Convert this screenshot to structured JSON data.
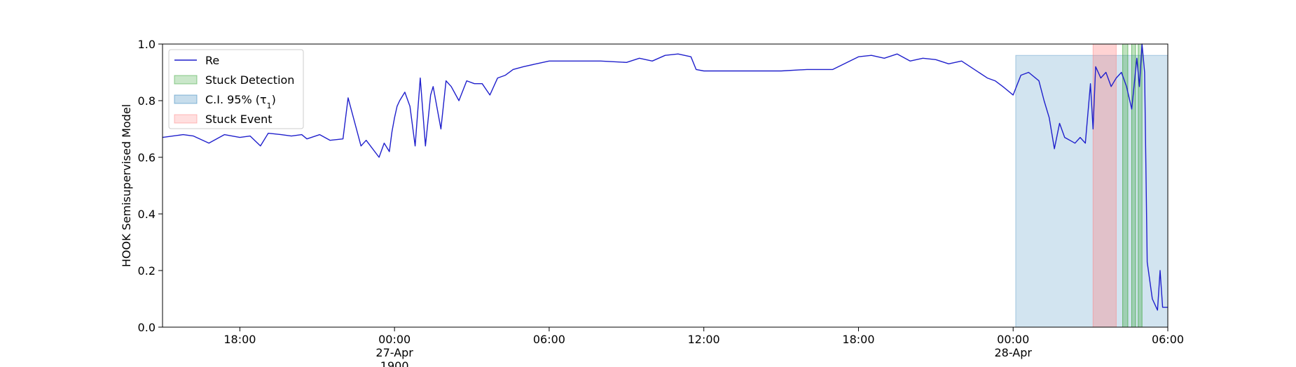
{
  "chart_data": {
    "type": "line",
    "title": "",
    "xlabel": "",
    "ylabel": "HOOK Semisupervised Model",
    "ylim": [
      0,
      1
    ],
    "xlim": [
      -9,
      30
    ],
    "x_unit": "hours relative to 27-Apr 00:00",
    "yticks": [
      {
        "value": 0.0,
        "label": "0.0"
      },
      {
        "value": 0.2,
        "label": "0.2"
      },
      {
        "value": 0.4,
        "label": "0.4"
      },
      {
        "value": 0.6,
        "label": "0.6"
      },
      {
        "value": 0.8,
        "label": "0.8"
      },
      {
        "value": 1.0,
        "label": "1.0"
      }
    ],
    "xticks": [
      {
        "value": -6,
        "label": "18:00",
        "sub1": "",
        "sub2": ""
      },
      {
        "value": 0,
        "label": "00:00",
        "sub1": "27-Apr",
        "sub2": "1900"
      },
      {
        "value": 6,
        "label": "06:00",
        "sub1": "",
        "sub2": ""
      },
      {
        "value": 12,
        "label": "12:00",
        "sub1": "",
        "sub2": ""
      },
      {
        "value": 18,
        "label": "18:00",
        "sub1": "",
        "sub2": ""
      },
      {
        "value": 24,
        "label": "00:00",
        "sub1": "28-Apr",
        "sub2": ""
      },
      {
        "value": 30,
        "label": "06:00",
        "sub1": "",
        "sub2": ""
      }
    ],
    "legend": {
      "placement": "upper-left",
      "entries": [
        {
          "label": "Re",
          "kind": "line",
          "color": "#1f1fcc"
        },
        {
          "label": "Stuck Detection",
          "kind": "patch",
          "color": "#2ca02c"
        },
        {
          "label": "C.I. 95% (τ",
          "sub": "1",
          "suffix": ")",
          "kind": "patch",
          "color": "#1f77b4"
        },
        {
          "label": "Stuck Event",
          "kind": "patch",
          "color": "#ff7f7f"
        }
      ]
    },
    "regions": {
      "ci": {
        "x0": 24.1,
        "x1": 30,
        "y0": 0,
        "y1": 0.96,
        "color": "#1f77b4",
        "opacity": 0.2
      },
      "stuck_event": {
        "x0": 27.1,
        "x1": 28.0,
        "y0": 0,
        "y1": 1,
        "color": "#ff8080",
        "opacity": 0.35
      },
      "stuck_detection": [
        {
          "x0": 28.25,
          "x1": 28.45
        },
        {
          "x0": 28.6,
          "x1": 28.75
        },
        {
          "x0": 28.85,
          "x1": 29.0
        }
      ],
      "detection_color": "#2ca02c",
      "detection_opacity": 0.3
    },
    "series": [
      {
        "name": "Re",
        "color": "#1f1fcc",
        "x": [
          -9.0,
          -8.6,
          -8.2,
          -7.8,
          -7.2,
          -6.6,
          -6.0,
          -5.6,
          -5.2,
          -4.9,
          -4.4,
          -4.0,
          -3.6,
          -3.4,
          -2.9,
          -2.5,
          -2.0,
          -1.8,
          -1.3,
          -1.1,
          -0.6,
          -0.4,
          -0.2,
          -0.1,
          0.0,
          0.1,
          0.2,
          0.4,
          0.6,
          0.8,
          1.0,
          1.2,
          1.4,
          1.5,
          1.6,
          1.8,
          2.0,
          2.2,
          2.5,
          2.8,
          3.1,
          3.4,
          3.7,
          4.0,
          4.3,
          4.6,
          5.0,
          5.5,
          6.0,
          6.5,
          7.0,
          8.0,
          9.0,
          9.5,
          10.0,
          10.5,
          11.0,
          11.5,
          11.7,
          12.0,
          13.0,
          14.0,
          15.0,
          16.0,
          17.0,
          18.0,
          18.5,
          19.0,
          19.5,
          20.0,
          20.5,
          21.0,
          21.5,
          22.0,
          22.5,
          23.0,
          23.3,
          23.6,
          24.0,
          24.3,
          24.6,
          25.0,
          25.2,
          25.4,
          25.6,
          25.8,
          26.0,
          26.2,
          26.4,
          26.6,
          26.8,
          27.0,
          27.1,
          27.2,
          27.4,
          27.6,
          27.8,
          28.0,
          28.2,
          28.4,
          28.6,
          28.8,
          28.9,
          29.0,
          29.1,
          29.2,
          29.4,
          29.6,
          29.7,
          29.8,
          30.0
        ],
        "y": [
          0.67,
          0.675,
          0.68,
          0.675,
          0.65,
          0.68,
          0.67,
          0.675,
          0.64,
          0.685,
          0.68,
          0.675,
          0.68,
          0.665,
          0.68,
          0.66,
          0.665,
          0.81,
          0.64,
          0.66,
          0.6,
          0.65,
          0.62,
          0.69,
          0.74,
          0.78,
          0.8,
          0.83,
          0.78,
          0.64,
          0.88,
          0.64,
          0.82,
          0.85,
          0.8,
          0.7,
          0.87,
          0.85,
          0.8,
          0.87,
          0.86,
          0.86,
          0.82,
          0.88,
          0.89,
          0.91,
          0.92,
          0.93,
          0.94,
          0.94,
          0.94,
          0.94,
          0.935,
          0.95,
          0.94,
          0.96,
          0.965,
          0.955,
          0.91,
          0.905,
          0.905,
          0.905,
          0.905,
          0.91,
          0.91,
          0.955,
          0.96,
          0.95,
          0.965,
          0.94,
          0.95,
          0.945,
          0.93,
          0.94,
          0.91,
          0.88,
          0.87,
          0.85,
          0.82,
          0.89,
          0.9,
          0.87,
          0.8,
          0.74,
          0.63,
          0.72,
          0.67,
          0.66,
          0.65,
          0.67,
          0.65,
          0.86,
          0.7,
          0.92,
          0.88,
          0.9,
          0.85,
          0.88,
          0.9,
          0.85,
          0.77,
          0.95,
          0.85,
          1.0,
          0.9,
          0.23,
          0.1,
          0.06,
          0.2,
          0.07,
          0.07
        ]
      }
    ]
  }
}
